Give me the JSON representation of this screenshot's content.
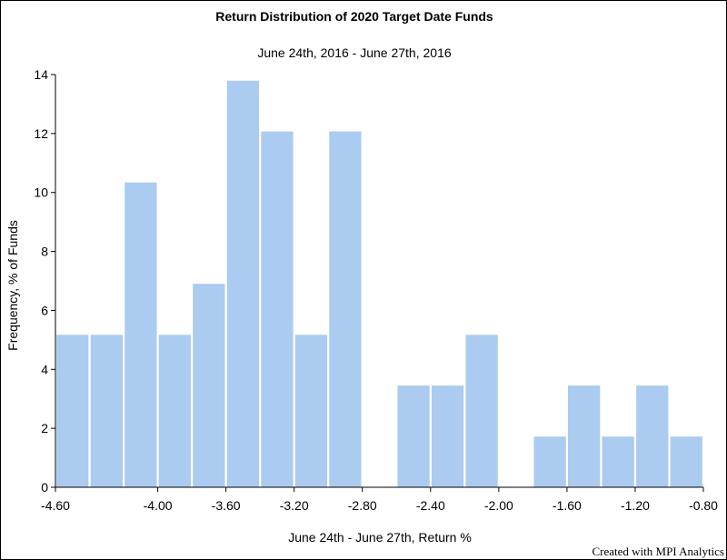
{
  "chart_data": {
    "type": "bar",
    "title": "Return Distribution of 2020 Target Date Funds",
    "subtitle": "June 24th, 2016 - June 27th, 2016",
    "xlabel": "June 24th - June 27th, Return %",
    "ylabel": "Frequency, % of Funds",
    "xlim": [
      -4.6,
      -0.8
    ],
    "ylim": [
      0,
      14
    ],
    "bin_width": 0.2,
    "x_ticks": [
      "-4.60",
      "-4.00",
      "-3.60",
      "-3.20",
      "-2.80",
      "-2.40",
      "-2.00",
      "-1.60",
      "-1.20",
      "-0.80"
    ],
    "x_tick_values": [
      -4.6,
      -4.0,
      -3.6,
      -3.2,
      -2.8,
      -2.4,
      -2.0,
      -1.6,
      -1.2,
      -0.8
    ],
    "y_ticks": [
      "0",
      "2",
      "4",
      "6",
      "8",
      "10",
      "12",
      "14"
    ],
    "y_tick_values": [
      0,
      2,
      4,
      6,
      8,
      10,
      12,
      14
    ],
    "bins_start": [
      -4.6,
      -4.4,
      -4.2,
      -4.0,
      -3.8,
      -3.6,
      -3.4,
      -3.2,
      -3.0,
      -2.8,
      -2.6,
      -2.4,
      -2.2,
      -2.0,
      -1.8,
      -1.6,
      -1.4,
      -1.2,
      -1.0
    ],
    "values": [
      5.17,
      5.17,
      10.34,
      5.17,
      6.9,
      13.79,
      12.07,
      5.17,
      12.07,
      0,
      3.45,
      3.45,
      5.17,
      0,
      1.72,
      3.45,
      1.72,
      3.45,
      1.72
    ],
    "bar_color": "#abcbf0",
    "grid": false,
    "legend": "none"
  },
  "footer": {
    "credit": "Created with MPI Analytics"
  }
}
